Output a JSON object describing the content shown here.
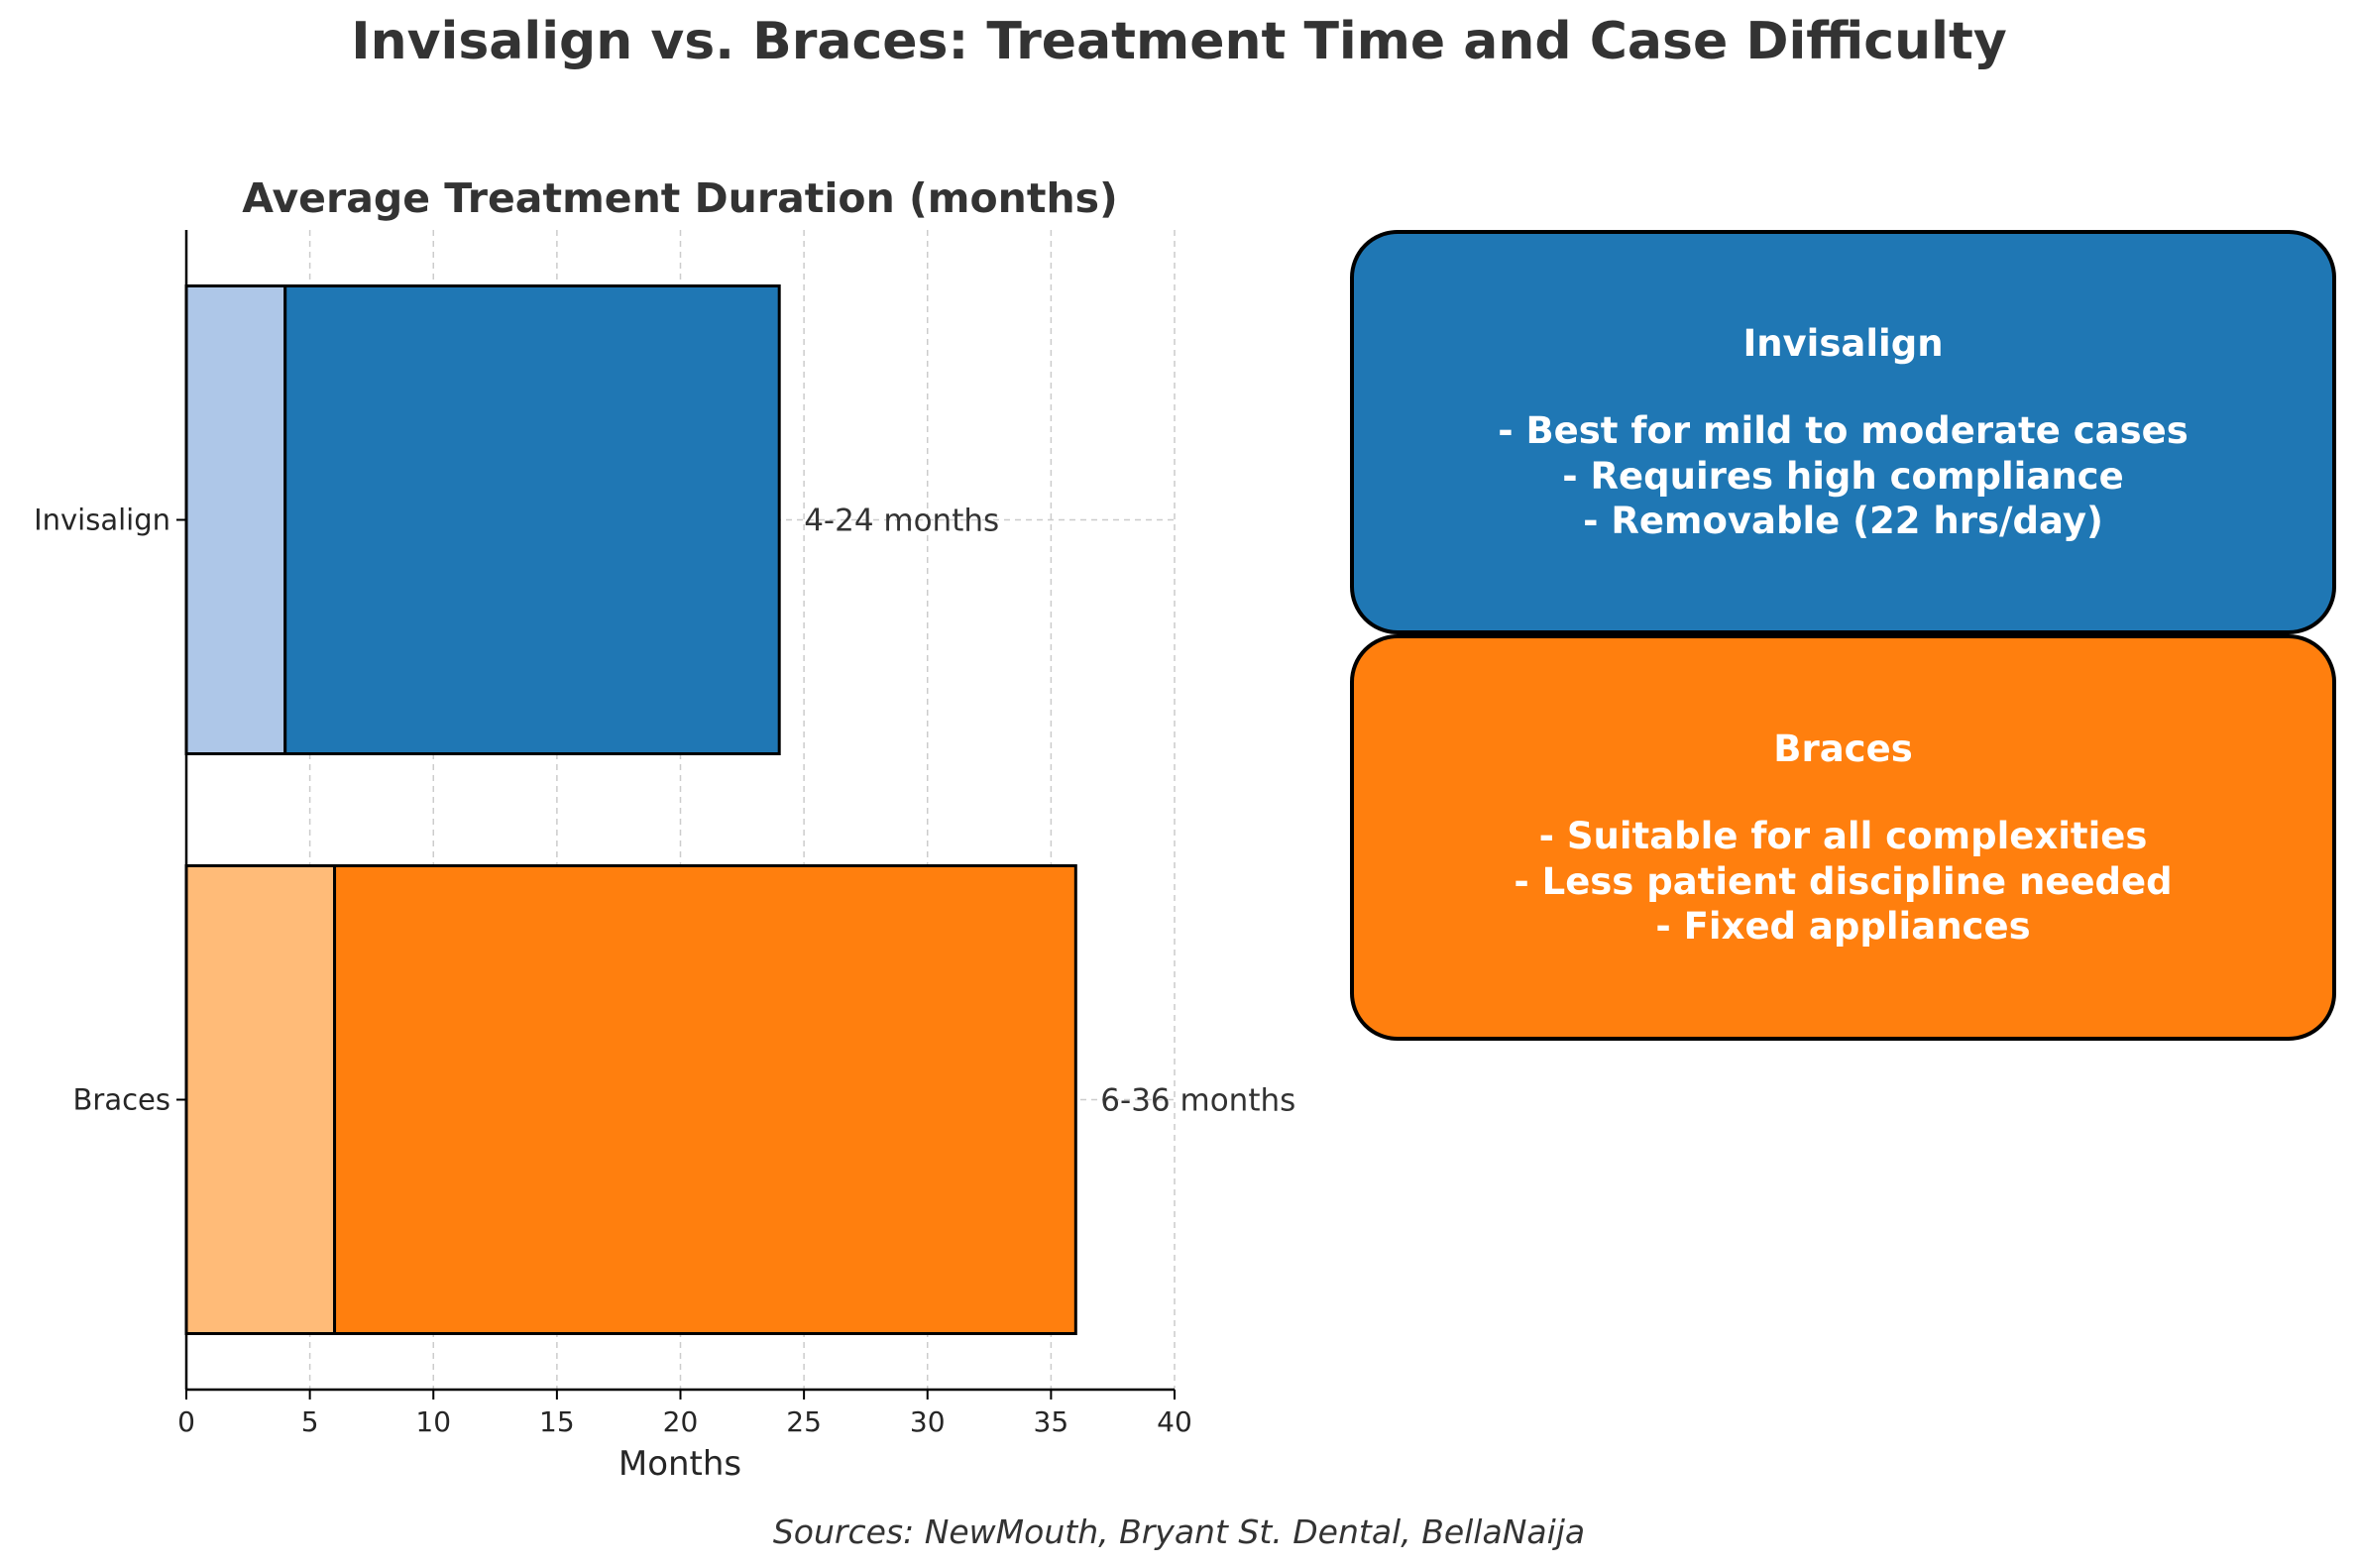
{
  "title": "Invisalign vs. Braces: Treatment Time and Case Difficulty",
  "sources": "Sources: NewMouth, Bryant St. Dental, BellaNaija",
  "chart_data": {
    "type": "bar",
    "orientation": "horizontal",
    "stacked": true,
    "title": "Average Treatment Duration (months)",
    "xlabel": "Months",
    "ylabel": "",
    "xlim": [
      0,
      40
    ],
    "xticks": [
      0,
      5,
      10,
      15,
      20,
      25,
      30,
      35,
      40
    ],
    "grid": true,
    "categories": [
      "Invisalign",
      "Braces"
    ],
    "series": [
      {
        "role": "minimum",
        "values": [
          4,
          6
        ],
        "colors": [
          "#aec7e8",
          "#ffbb78"
        ]
      },
      {
        "role": "additional",
        "values": [
          20,
          30
        ],
        "colors": [
          "#1f77b4",
          "#ff7f0e"
        ]
      }
    ],
    "totals": [
      24,
      36
    ],
    "data_labels": [
      "4-24 months",
      "6-36 months"
    ]
  },
  "info_boxes": [
    {
      "title": "Invisalign",
      "color": "#1f77b4",
      "lines": [
        "- Best for mild to moderate cases",
        "- Requires high compliance",
        "- Removable (22 hrs/day)"
      ]
    },
    {
      "title": "Braces",
      "color": "#ff7f0e",
      "lines": [
        "- Suitable for all complexities",
        "- Less patient discipline needed",
        "- Fixed appliances"
      ]
    }
  ]
}
